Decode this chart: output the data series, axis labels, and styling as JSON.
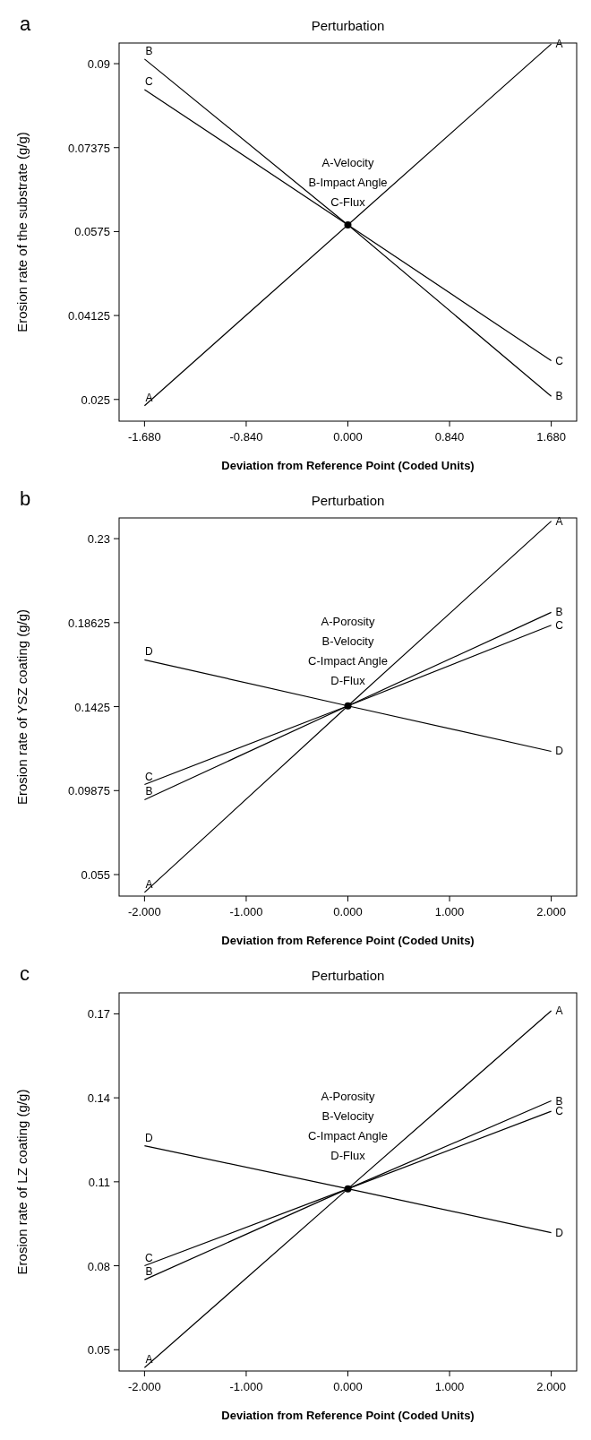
{
  "chart_data": [
    {
      "type": "line",
      "title": "Perturbation",
      "xlabel": "Deviation from Reference Point (Coded Units)",
      "ylabel": "Erosion rate of the substrate (g/g)",
      "annotations": [
        "a",
        "A-Velocity",
        "B-Impact Angle",
        "C-Flux"
      ],
      "xlim": [
        -1.89,
        1.89
      ],
      "xticks": [
        {
          "value": -1.68,
          "label": "-1.680"
        },
        {
          "value": -0.84,
          "label": "-0.840"
        },
        {
          "value": 0,
          "label": "0.000"
        },
        {
          "value": 0.84,
          "label": "0.840"
        },
        {
          "value": 1.68,
          "label": "1.680"
        }
      ],
      "ylim": [
        0.0208,
        0.094
      ],
      "yticks": [
        0.025,
        0.04125,
        0.0575,
        0.07375,
        0.09
      ],
      "series": [
        {
          "name": "A",
          "color": "#000000",
          "x": [
            -1.68,
            0,
            1.68
          ],
          "values": [
            0.0238,
            0.0588,
            0.0938
          ]
        },
        {
          "name": "B",
          "color": "#000000",
          "x": [
            -1.68,
            0,
            1.68
          ],
          "values": [
            0.0909,
            0.0588,
            0.0256
          ]
        },
        {
          "name": "C",
          "color": "#000000",
          "x": [
            -1.68,
            0,
            1.68
          ],
          "values": [
            0.085,
            0.0588,
            0.0325
          ]
        },
        {
          "type": "scatter",
          "color": "#000000",
          "x": [
            0
          ],
          "values": [
            0.0588
          ]
        }
      ]
    },
    {
      "type": "line",
      "title": "Perturbation",
      "xlabel": "Deviation from Reference Point (Coded Units)",
      "ylabel": "Erosion rate of YSZ coating (g/g)",
      "annotations": [
        "b",
        "A-Porosity",
        "B-Velocity",
        "C-Impact Angle",
        "D-Flux"
      ],
      "xlim": [
        -2.25,
        2.25
      ],
      "xticks": [
        {
          "value": -2,
          "label": "-2.000"
        },
        {
          "value": -1,
          "label": "-1.000"
        },
        {
          "value": 0,
          "label": "0.000"
        },
        {
          "value": 1,
          "label": "1.000"
        },
        {
          "value": 2,
          "label": "2.000"
        }
      ],
      "ylim": [
        0.0438,
        0.2408
      ],
      "yticks": [
        0.055,
        0.09875,
        0.1425,
        0.18625,
        0.23
      ],
      "series": [
        {
          "name": "A",
          "color": "#000000",
          "x": [
            -2,
            0,
            2
          ],
          "values": [
            0.0457,
            0.1429,
            0.2391
          ]
        },
        {
          "name": "B",
          "color": "#000000",
          "x": [
            -2,
            0,
            2
          ],
          "values": [
            0.094,
            0.1429,
            0.1916
          ]
        },
        {
          "name": "C",
          "color": "#000000",
          "x": [
            -2,
            0,
            2
          ],
          "values": [
            0.1019,
            0.1429,
            0.1849
          ]
        },
        {
          "name": "D",
          "color": "#000000",
          "x": [
            -2,
            0,
            2
          ],
          "values": [
            0.1669,
            0.1429,
            0.1192
          ]
        },
        {
          "type": "scatter",
          "color": "#000000",
          "x": [
            0
          ],
          "values": [
            0.1429
          ]
        }
      ]
    },
    {
      "type": "line",
      "title": "Perturbation",
      "xlabel": "Deviation from Reference Point (Coded Units)",
      "ylabel": "Erosion rate of LZ coating (g/g)",
      "annotations": [
        "c",
        "A-Porosity",
        "B-Velocity",
        "C-Impact Angle",
        "D-Flux"
      ],
      "xlim": [
        -2.25,
        2.25
      ],
      "xticks": [
        {
          "value": -2,
          "label": "-2.000"
        },
        {
          "value": -1,
          "label": "-1.000"
        },
        {
          "value": 0,
          "label": "0.000"
        },
        {
          "value": 1,
          "label": "1.000"
        },
        {
          "value": 2,
          "label": "2.000"
        }
      ],
      "ylim": [
        0.0424,
        0.1775
      ],
      "yticks": [
        0.05,
        0.08,
        0.11,
        0.14,
        0.17
      ],
      "series": [
        {
          "name": "A",
          "color": "#000000",
          "x": [
            -2,
            0,
            2
          ],
          "values": [
            0.0436,
            0.1075,
            0.1711
          ]
        },
        {
          "name": "B",
          "color": "#000000",
          "x": [
            -2,
            0,
            2
          ],
          "values": [
            0.075,
            0.1075,
            0.1389
          ]
        },
        {
          "name": "C",
          "color": "#000000",
          "x": [
            -2,
            0,
            2
          ],
          "values": [
            0.08,
            0.1075,
            0.1352
          ]
        },
        {
          "name": "D",
          "color": "#000000",
          "x": [
            -2,
            0,
            2
          ],
          "values": [
            0.1229,
            0.1075,
            0.0918
          ]
        },
        {
          "type": "scatter",
          "color": "#000000",
          "x": [
            0
          ],
          "values": [
            0.1075
          ]
        }
      ]
    }
  ]
}
